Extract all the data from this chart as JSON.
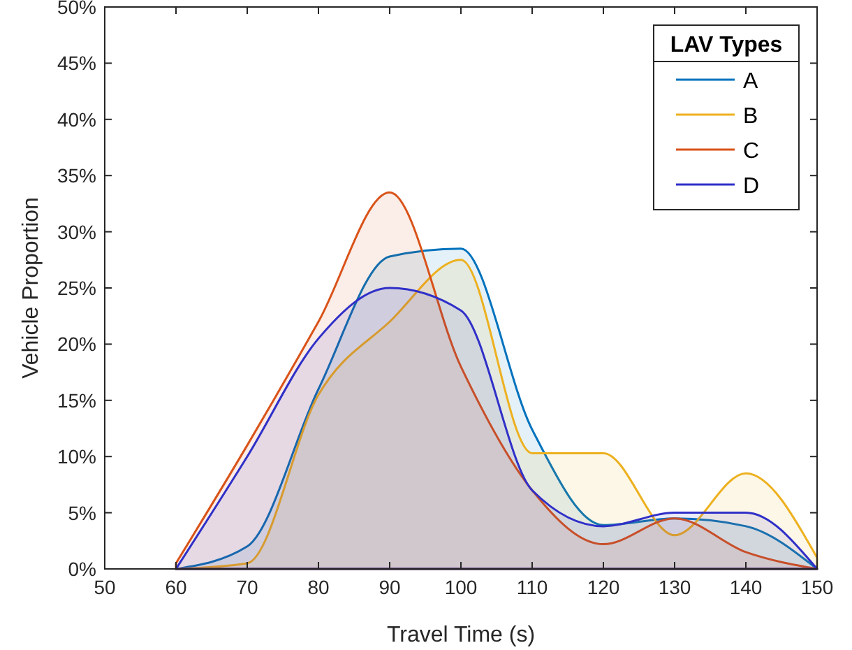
{
  "chart_data": {
    "type": "area",
    "xlabel": "Travel Time (s)",
    "ylabel": "Vehicle Proportion",
    "legend_title": "LAV Types",
    "legend": "top right",
    "x": [
      60,
      70,
      80,
      90,
      100,
      110,
      120,
      130,
      140,
      150
    ],
    "series": [
      {
        "name": "A",
        "color": "#0072bd",
        "values": [
          0,
          2,
          16,
          27.8,
          28.5,
          12.4,
          3.9,
          4.5,
          3.8,
          0
        ]
      },
      {
        "name": "B",
        "color": "#edb120",
        "values": [
          0,
          0.5,
          15.5,
          22,
          27.5,
          10.3,
          10.3,
          3,
          8.5,
          1
        ]
      },
      {
        "name": "C",
        "color": "#d95319",
        "values": [
          0.5,
          11,
          22,
          33.5,
          18,
          7,
          2.2,
          4.5,
          1.5,
          0
        ]
      },
      {
        "name": "D",
        "color": "#3030c8",
        "values": [
          0,
          10,
          20.5,
          25,
          23,
          7,
          3.8,
          5,
          5,
          0
        ]
      }
    ],
    "xlim": [
      50,
      150
    ],
    "xticks": [
      50,
      60,
      70,
      80,
      90,
      100,
      110,
      120,
      130,
      140,
      150
    ],
    "ylim": [
      0,
      50
    ],
    "yticks": [
      {
        "value": 0,
        "label": "0%"
      },
      {
        "value": 5,
        "label": "5%"
      },
      {
        "value": 10,
        "label": "10%"
      },
      {
        "value": 15,
        "label": "15%"
      },
      {
        "value": 20,
        "label": "20%"
      },
      {
        "value": 25,
        "label": "25%"
      },
      {
        "value": 30,
        "label": "30%"
      },
      {
        "value": 35,
        "label": "35%"
      },
      {
        "value": 40,
        "label": "40%"
      },
      {
        "value": 45,
        "label": "45%"
      },
      {
        "value": 50,
        "label": "50%"
      }
    ]
  }
}
